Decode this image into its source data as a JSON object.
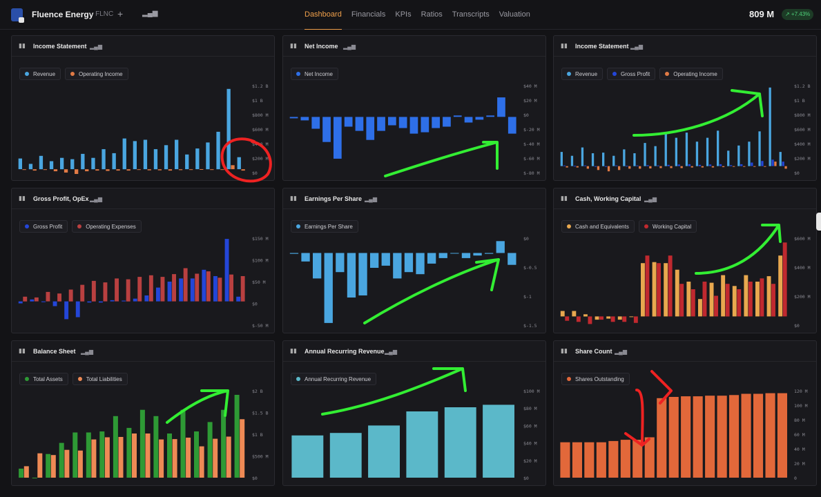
{
  "header": {
    "company": "Fluence Energy",
    "ticker": "· FLNC",
    "add_label": "+",
    "market_cap": "809 M",
    "change": "↗ +7.43%",
    "tabs": [
      "Dashboard",
      "Financials",
      "KPIs",
      "Ratios",
      "Transcripts",
      "Valuation"
    ],
    "active_tab": "Dashboard"
  },
  "colors": {
    "bg": "#131316",
    "panel": "#19191d",
    "accent": "#f0a04b",
    "light_blue": "#4aa6e0",
    "orange": "#e07a45",
    "blue": "#2e6fe8",
    "dark_blue": "#2446d8",
    "red": "#b94040",
    "gold": "#e8a84f",
    "crimson": "#c0292f",
    "green": "#2e9a35",
    "salmon": "#ee8a55",
    "teal": "#5bb8c9",
    "share_orange": "#e2683a",
    "annotation_green": "#33ee33",
    "annotation_red": "#ee2222"
  },
  "panels": [
    {
      "title": "Income Statement",
      "icon": "bar-chart-icon",
      "legend": [
        {
          "label": "Revenue",
          "color": "#4aa6e0"
        },
        {
          "label": "Operating Income",
          "color": "#e07a45"
        }
      ],
      "y_ticks": [
        "$1.2 B",
        "$1 B",
        "$800 M",
        "$600 M",
        "$400 M",
        "$200 M",
        "$0"
      ]
    },
    {
      "title": "Net Income",
      "icon": "bar-chart-icon",
      "legend": [
        {
          "label": "Net Income",
          "color": "#2e6fe8"
        }
      ],
      "y_ticks": [
        "$40 M",
        "$20 M",
        "$0",
        "$-20 M",
        "$-40 M",
        "$-60 M",
        "$-80 M"
      ]
    },
    {
      "title": "Income Statement",
      "icon": "bar-chart-icon",
      "legend": [
        {
          "label": "Revenue",
          "color": "#4aa6e0"
        },
        {
          "label": "Gross Profit",
          "color": "#2446d8"
        },
        {
          "label": "Operating Income",
          "color": "#e07a45"
        }
      ],
      "y_ticks": [
        "$1.2 B",
        "$1 B",
        "$800 M",
        "$600 M",
        "$400 M",
        "$200 M",
        "$0"
      ]
    },
    {
      "title": "Gross Profit, OpEx",
      "icon": "bar-chart-icon",
      "legend": [
        {
          "label": "Gross Profit",
          "color": "#2446d8"
        },
        {
          "label": "Operating Expenses",
          "color": "#b94040"
        }
      ],
      "y_ticks": [
        "$150 M",
        "$100 M",
        "$50 M",
        "$0",
        "$-50 M"
      ]
    },
    {
      "title": "Earnings Per Share",
      "icon": "bar-chart-icon",
      "legend": [
        {
          "label": "Earnings Per Share",
          "color": "#4aa6e0"
        }
      ],
      "y_ticks": [
        "$0",
        "$-0.5",
        "$-1",
        "$-1.5"
      ]
    },
    {
      "title": "Cash, Working Capital",
      "icon": "bar-chart-icon",
      "legend": [
        {
          "label": "Cash and Equivalents",
          "color": "#e8a84f"
        },
        {
          "label": "Working Capital",
          "color": "#c0292f"
        }
      ],
      "y_ticks": [
        "$600 M",
        "$400 M",
        "$200 M",
        "$0"
      ]
    },
    {
      "title": "Balance Sheet",
      "icon": "bar-chart-icon",
      "legend": [
        {
          "label": "Total Assets",
          "color": "#2e9a35"
        },
        {
          "label": "Total Liabilities",
          "color": "#ee8a55"
        }
      ],
      "y_ticks": [
        "$2 B",
        "$1.5 B",
        "$1 B",
        "$500 M",
        "$0"
      ]
    },
    {
      "title": "Annual Recurring Revenue",
      "icon": "bar-chart-icon",
      "legend": [
        {
          "label": "Annual Recurring Revenue",
          "color": "#5bb8c9"
        }
      ],
      "y_ticks": [
        "$100 M",
        "$80 M",
        "$60 M",
        "$40 M",
        "$20 M",
        "$0"
      ]
    },
    {
      "title": "Share Count",
      "icon": "bar-chart-icon",
      "legend": [
        {
          "label": "Shares Outstanding",
          "color": "#e2683a"
        }
      ],
      "y_ticks": [
        "120 M",
        "100 M",
        "80 M",
        "60 M",
        "40 M",
        "20 M",
        "0"
      ]
    }
  ],
  "chart_data": [
    {
      "type": "bar",
      "title": "Income Statement",
      "series": [
        {
          "name": "Revenue",
          "values": [
            160,
            80,
            200,
            120,
            170,
            150,
            230,
            170,
            300,
            240,
            460,
            420,
            440,
            300,
            360,
            440,
            220,
            310,
            400,
            560,
            1200,
            180
          ]
        },
        {
          "name": "Operating Income",
          "values": [
            -10,
            -20,
            -5,
            -30,
            -50,
            -70,
            -30,
            -20,
            -25,
            -20,
            -20,
            -10,
            -15,
            -15,
            -20,
            -12,
            0,
            2,
            -5,
            -5,
            60,
            -20
          ]
        }
      ],
      "ylim": [
        -50,
        1250
      ]
    },
    {
      "type": "bar",
      "title": "Net Income",
      "series": [
        {
          "name": "Net Income",
          "values": [
            -2,
            -5,
            -17,
            -36,
            -60,
            -14,
            -20,
            -33,
            -20,
            -12,
            -16,
            -24,
            -22,
            -16,
            -14,
            2,
            -8,
            -4,
            2,
            28,
            -24
          ]
        }
      ],
      "ylim": [
        -80,
        45
      ]
    },
    {
      "type": "bar",
      "title": "Income Statement",
      "series": [
        {
          "name": "Revenue",
          "values": [
            220,
            160,
            290,
            200,
            210,
            160,
            260,
            200,
            360,
            310,
            530,
            440,
            520,
            380,
            440,
            550,
            240,
            320,
            380,
            540,
            1220,
            220
          ]
        },
        {
          "name": "Gross Profit",
          "values": [
            10,
            5,
            10,
            -5,
            -10,
            10,
            5,
            10,
            15,
            10,
            20,
            25,
            30,
            20,
            25,
            30,
            15,
            30,
            55,
            80,
            100,
            70
          ]
        },
        {
          "name": "Operating Income",
          "values": [
            -20,
            -20,
            -40,
            -60,
            -80,
            -60,
            -40,
            -40,
            -35,
            -30,
            -30,
            -30,
            -20,
            -20,
            -20,
            -15,
            -10,
            0,
            -5,
            -5,
            70,
            -40
          ]
        }
      ],
      "ylim": [
        -100,
        1250
      ]
    },
    {
      "type": "bar",
      "title": "Gross Profit, OpEx",
      "series": [
        {
          "name": "Gross Profit",
          "values": [
            -5,
            5,
            -2,
            -12,
            -45,
            -40,
            -3,
            -3,
            3,
            2,
            7,
            15,
            35,
            50,
            58,
            58,
            80,
            64,
            158,
            12
          ]
        },
        {
          "name": "Operating Expenses",
          "values": [
            12,
            10,
            24,
            20,
            30,
            42,
            52,
            48,
            58,
            56,
            62,
            66,
            62,
            69,
            84,
            70,
            76,
            60,
            68,
            64
          ]
        }
      ],
      "ylim": [
        -60,
        160
      ]
    },
    {
      "type": "bar",
      "title": "Earnings Per Share",
      "series": [
        {
          "name": "Earnings Per Share",
          "values": [
            -0.02,
            -0.2,
            -0.6,
            -1.65,
            -0.45,
            -1.05,
            -1.0,
            -0.35,
            -0.3,
            -0.6,
            -0.45,
            -0.5,
            -0.25,
            -0.12,
            0.0,
            -0.12,
            -0.06,
            -0.02,
            0.28,
            -0.28
          ]
        }
      ],
      "ylim": [
        -1.7,
        0.35
      ]
    },
    {
      "type": "bar",
      "title": "Cash, Working Capital",
      "series": [
        {
          "name": "Cash and Equivalents",
          "values": [
            50,
            50,
            20,
            -30,
            -20,
            -30,
            0,
            490,
            500,
            490,
            430,
            320,
            160,
            310,
            380,
            280,
            380,
            320,
            370,
            560
          ]
        },
        {
          "name": "Working Capital",
          "values": [
            -40,
            -50,
            -70,
            -30,
            -50,
            -50,
            -60,
            560,
            490,
            560,
            300,
            250,
            320,
            190,
            300,
            250,
            320,
            350,
            300,
            680
          ]
        }
      ],
      "ylim": [
        -80,
        720
      ]
    },
    {
      "type": "bar",
      "title": "Balance Sheet",
      "series": [
        {
          "name": "Total Assets",
          "values": [
            260,
            0,
            680,
            1000,
            1300,
            1300,
            1330,
            1770,
            1430,
            1950,
            1770,
            1270,
            1950,
            1330,
            1600,
            1950,
            2380
          ]
        },
        {
          "name": "Total Liabilities",
          "values": [
            330,
            700,
            650,
            800,
            780,
            1100,
            1160,
            1170,
            1270,
            1270,
            1100,
            1110,
            1150,
            900,
            1120,
            1180,
            1680
          ]
        }
      ],
      "ylim": [
        0,
        2500
      ]
    },
    {
      "type": "bar",
      "title": "Annual Recurring Revenue",
      "categories": [
        "1",
        "2",
        "3",
        "4",
        "5",
        "6"
      ],
      "values": [
        51,
        54,
        63,
        80,
        85,
        88
      ],
      "ylim": [
        0,
        105
      ]
    },
    {
      "type": "bar",
      "title": "Share Count",
      "values": [
        57,
        57,
        57,
        57,
        59,
        61,
        61,
        65,
        128,
        130,
        131,
        131,
        132,
        132,
        133,
        135,
        135,
        136,
        136
      ],
      "ylim": [
        0,
        140
      ]
    }
  ]
}
